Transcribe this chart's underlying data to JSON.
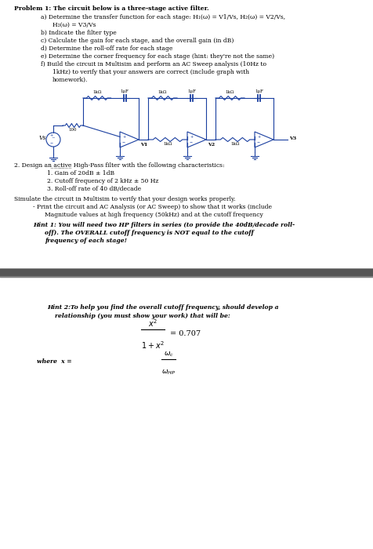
{
  "circuit_color": "#1a3fa0",
  "title": "Problem 1: The circuit below is a three-stage active filter.",
  "part_a": "a) Determine the transfer function for each stage: H₁(ω) = V1/Vs, H₂(ω) = V2/Vs,",
  "part_a2": "H₃(ω) = V3/Vs",
  "part_b": "b) Indicate the filter type",
  "part_c": "c) Calculate the gain for each stage, and the overall gain (in dB)",
  "part_d": "d) Determine the roll-off rate for each stage",
  "part_e": "e) Determine the corner frequency for each stage (hint: they're not the same)",
  "part_f": "f) Build the circuit in Multisim and perform an AC Sweep analysis (10Hz to",
  "part_f2": "1kHz) to verify that your answers are correct (include graph with",
  "part_f3": "homework).",
  "prob2_1": "1. Gain of 20dB ± 1dB",
  "prob2_2": "2. Cutoff frequency of 2 kHz ± 50 Hz",
  "prob2_3": "3. Roll-off rate of 40 dB/decade",
  "simulate": "Simulate the circuit in Multisim to verify that your design works properly.",
  "simulate2": "- Print the circuit and AC Analysis (or AC Sweep) to show that it works (include",
  "simulate3": "Magnitude values at high frequency (50kHz) and at the cutoff frequency",
  "hint1": "Hint 1: You will need two HP filters in series (to provide the 40dB/decade roll-",
  "hint1b": "off). The OVERALL cutoff frequency is NOT equal to the cutoff",
  "hint1c": "frequency of each stage!",
  "hint2": "Hint 2:To help you find the overall cutoff frequency, should develop a",
  "hint2b": "relationship (you must show your work) that will be:",
  "where_x": "where  x ="
}
